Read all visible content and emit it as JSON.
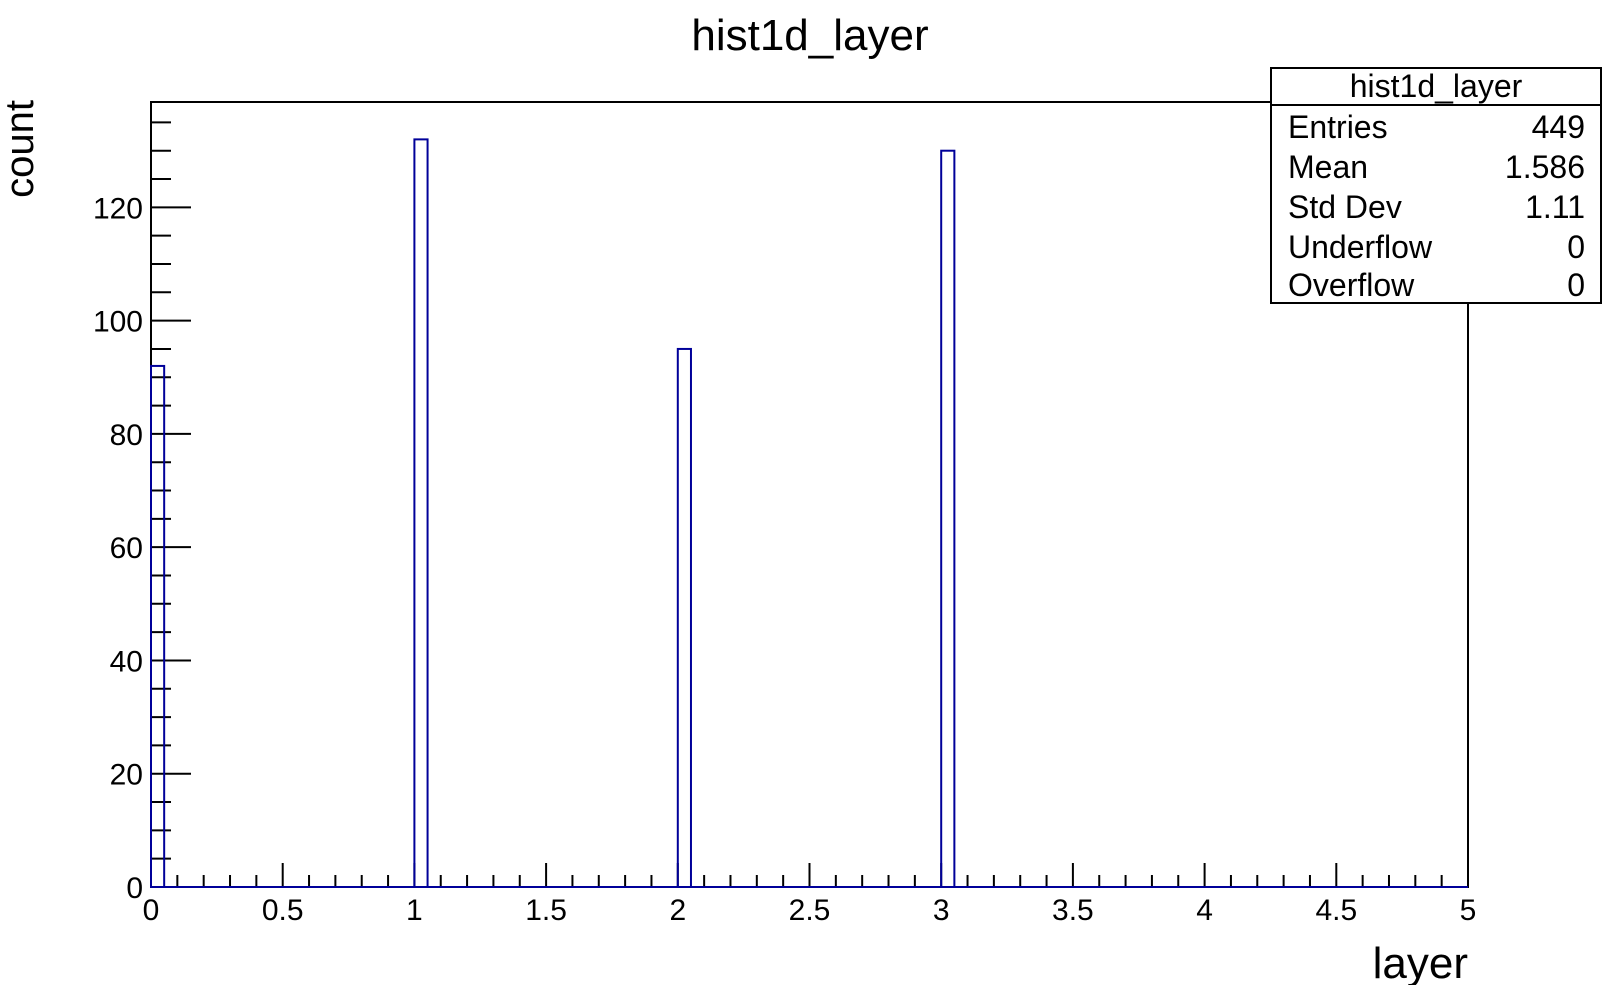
{
  "chart_data": {
    "type": "bar",
    "title": "hist1d_layer",
    "xlabel": "layer",
    "ylabel": "count",
    "xlim": [
      0,
      5
    ],
    "ylim": [
      0,
      138.6
    ],
    "bin_width": 0.05,
    "x_ticks": [
      0,
      0.5,
      1,
      1.5,
      2,
      2.5,
      3,
      3.5,
      4,
      4.5,
      5
    ],
    "x_tick_labels": [
      "0",
      "0.5",
      "1",
      "1.5",
      "2",
      "2.5",
      "3",
      "3.5",
      "4",
      "4.5",
      "5"
    ],
    "y_ticks": [
      0,
      20,
      40,
      60,
      80,
      100,
      120
    ],
    "y_tick_labels": [
      "0",
      "20",
      "40",
      "60",
      "80",
      "100",
      "120"
    ],
    "bins": [
      {
        "x_low": 0.0,
        "x_high": 0.05,
        "value": 92
      },
      {
        "x_low": 1.0,
        "x_high": 1.05,
        "value": 132
      },
      {
        "x_low": 2.0,
        "x_high": 2.05,
        "value": 95
      },
      {
        "x_low": 3.0,
        "x_high": 3.05,
        "value": 130
      }
    ],
    "line_color": "#000099",
    "grid": false,
    "stats_box": {
      "title": "hist1d_layer",
      "placement": "top-right",
      "rows": [
        {
          "label": "Entries",
          "value": "449"
        },
        {
          "label": "Mean",
          "value": "1.586"
        },
        {
          "label": "Std Dev",
          "value": "1.11"
        },
        {
          "label": "Underflow",
          "value": "0"
        },
        {
          "label": "Overflow",
          "value": "0"
        }
      ]
    }
  }
}
